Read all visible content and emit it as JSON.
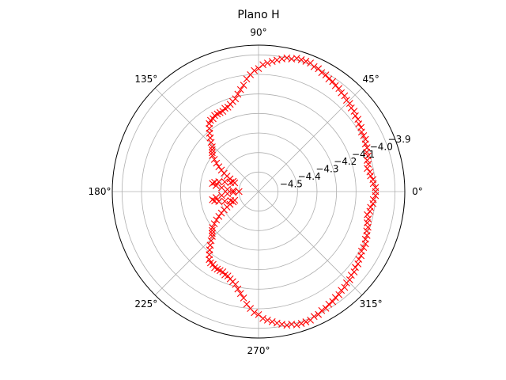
{
  "chart_data": {
    "type": "scatter",
    "projection": "polar",
    "title": "Plano H",
    "marker": "x",
    "marker_color": "#ff0000",
    "grid": true,
    "r_range": [
      -4.6,
      -3.85
    ],
    "angle_ticks": [
      {
        "deg": 0,
        "label": "0°"
      },
      {
        "deg": 45,
        "label": "45°"
      },
      {
        "deg": 90,
        "label": "90°"
      },
      {
        "deg": 135,
        "label": "135°"
      },
      {
        "deg": 180,
        "label": "180°"
      },
      {
        "deg": 225,
        "label": "225°"
      },
      {
        "deg": 270,
        "label": "270°"
      },
      {
        "deg": 315,
        "label": "315°"
      }
    ],
    "radial_ticks": [
      {
        "value": -4.5,
        "label": "−4.5"
      },
      {
        "value": -4.4,
        "label": "−4.4"
      },
      {
        "value": -4.3,
        "label": "−4.3"
      },
      {
        "value": -4.2,
        "label": "−4.2"
      },
      {
        "value": -4.1,
        "label": "−4.1"
      },
      {
        "value": -4.0,
        "label": "−4.0"
      },
      {
        "value": -3.9,
        "label": "−3.9"
      }
    ],
    "radial_label_angle_deg": 22.5,
    "series": [
      {
        "angles_deg": [
          0,
          2,
          4,
          6,
          8,
          10,
          12,
          14,
          16,
          18,
          20,
          22,
          24,
          26,
          28,
          30,
          32,
          34,
          36,
          38,
          40,
          42,
          44,
          46,
          48,
          50,
          52,
          54,
          56,
          58,
          60,
          62,
          64,
          66,
          68,
          70,
          72,
          74,
          76,
          78,
          80,
          82,
          84,
          86,
          88,
          90,
          92,
          94,
          96,
          98,
          100,
          102,
          104,
          106,
          108,
          110,
          112,
          114,
          116,
          118,
          120,
          122,
          124,
          126,
          128,
          130,
          132,
          134,
          136,
          138,
          140,
          142,
          144,
          146,
          148,
          150,
          152,
          154,
          156,
          158,
          160,
          162,
          164,
          166,
          168,
          170,
          172,
          174,
          176,
          178,
          180,
          182,
          184,
          186,
          188,
          190,
          192,
          194,
          196,
          198,
          200,
          202,
          204,
          206,
          208,
          210,
          212,
          214,
          216,
          218,
          220,
          222,
          224,
          226,
          228,
          230,
          232,
          234,
          236,
          238,
          240,
          242,
          244,
          246,
          248,
          250,
          252,
          254,
          256,
          258,
          260,
          262,
          264,
          266,
          268,
          270,
          272,
          274,
          276,
          278,
          280,
          282,
          284,
          286,
          288,
          290,
          292,
          294,
          296,
          298,
          300,
          302,
          304,
          306,
          308,
          310,
          312,
          314,
          316,
          318,
          320,
          322,
          324,
          326,
          328,
          330,
          332,
          334,
          336,
          338,
          340,
          342,
          344,
          346,
          348,
          350,
          352,
          354,
          356,
          358
        ],
        "values": [
          -4.0,
          -4.0,
          -4.01,
          -4.01,
          -4.02,
          -4.02,
          -4.03,
          -4.02,
          -4.02,
          -4.01,
          -4.01,
          -4.0,
          -4.0,
          -3.99,
          -3.99,
          -3.99,
          -3.98,
          -3.98,
          -3.97,
          -3.97,
          -3.96,
          -3.96,
          -3.95,
          -3.95,
          -3.94,
          -3.94,
          -3.93,
          -3.93,
          -3.92,
          -3.92,
          -3.91,
          -3.91,
          -3.9,
          -3.9,
          -3.89,
          -3.89,
          -3.89,
          -3.89,
          -3.9,
          -3.9,
          -3.91,
          -3.92,
          -3.93,
          -3.94,
          -3.95,
          -3.97,
          -3.98,
          -4.0,
          -4.02,
          -4.05,
          -4.07,
          -4.09,
          -4.11,
          -4.12,
          -4.13,
          -4.14,
          -4.14,
          -4.15,
          -4.15,
          -4.15,
          -4.15,
          -4.16,
          -4.16,
          -4.17,
          -4.19,
          -4.21,
          -4.23,
          -4.25,
          -4.27,
          -4.28,
          -4.29,
          -4.3,
          -4.32,
          -4.34,
          -4.36,
          -4.38,
          -4.4,
          -4.42,
          -4.44,
          -4.46,
          -4.47,
          -4.45,
          -4.42,
          -4.39,
          -4.37,
          -4.36,
          -4.38,
          -4.41,
          -4.44,
          -4.47,
          -4.5,
          -4.47,
          -4.44,
          -4.41,
          -4.38,
          -4.36,
          -4.37,
          -4.39,
          -4.42,
          -4.45,
          -4.47,
          -4.46,
          -4.44,
          -4.42,
          -4.4,
          -4.38,
          -4.36,
          -4.34,
          -4.32,
          -4.3,
          -4.29,
          -4.28,
          -4.27,
          -4.25,
          -4.23,
          -4.21,
          -4.19,
          -4.17,
          -4.16,
          -4.16,
          -4.15,
          -4.15,
          -4.15,
          -4.15,
          -4.14,
          -4.14,
          -4.13,
          -4.12,
          -4.11,
          -4.09,
          -4.07,
          -4.05,
          -4.02,
          -4.0,
          -3.98,
          -3.97,
          -3.95,
          -3.94,
          -3.93,
          -3.92,
          -3.91,
          -3.9,
          -3.9,
          -3.89,
          -3.89,
          -3.89,
          -3.89,
          -3.9,
          -3.9,
          -3.91,
          -3.91,
          -3.92,
          -3.92,
          -3.93,
          -3.93,
          -3.94,
          -3.94,
          -3.95,
          -3.95,
          -3.96,
          -3.96,
          -3.97,
          -3.97,
          -3.98,
          -3.98,
          -3.99,
          -3.99,
          -3.99,
          -4.0,
          -4.0,
          -4.01,
          -4.01,
          -4.02,
          -4.02,
          -4.03,
          -4.02,
          -4.02,
          -4.01,
          -4.01,
          -4.0
        ]
      }
    ]
  }
}
